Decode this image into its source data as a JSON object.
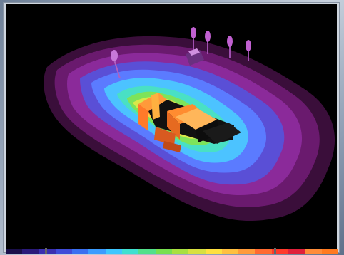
{
  "viewport": {
    "background": "#000000",
    "contour_colors": [
      "#3a0e3a",
      "#6a1a6e",
      "#8b2a9a",
      "#5a4fd6",
      "#5b7bff",
      "#4cc3ff",
      "#49e0c4",
      "#7ee35a",
      "#d8e84a",
      "#ffd040",
      "#ff9a3a"
    ],
    "building_color": "#ff8f3a",
    "shadow_color": "#111111",
    "luminaire_color": "#c060d0"
  },
  "legend": {
    "colors": [
      "#1a0f4a",
      "#2a1a7a",
      "#3a2fb0",
      "#3f4bd8",
      "#3a6ff0",
      "#3b9cff",
      "#3ec7ff",
      "#3fe0d0",
      "#52e08a",
      "#78e04f",
      "#a8e040",
      "#d8e040",
      "#ffe040",
      "#ffc040",
      "#ff9b3a",
      "#ff6a30",
      "#ff3a2a",
      "#e0203a",
      "#ff8c3a",
      "#ff7a20"
    ],
    "labels": [
      "",
      "",
      "",
      "",
      "",
      "",
      "",
      "",
      "",
      "",
      "",
      "",
      "",
      "",
      "",
      "",
      "",
      "",
      "",
      ""
    ],
    "marker_fractions": [
      0.12,
      0.81
    ]
  }
}
